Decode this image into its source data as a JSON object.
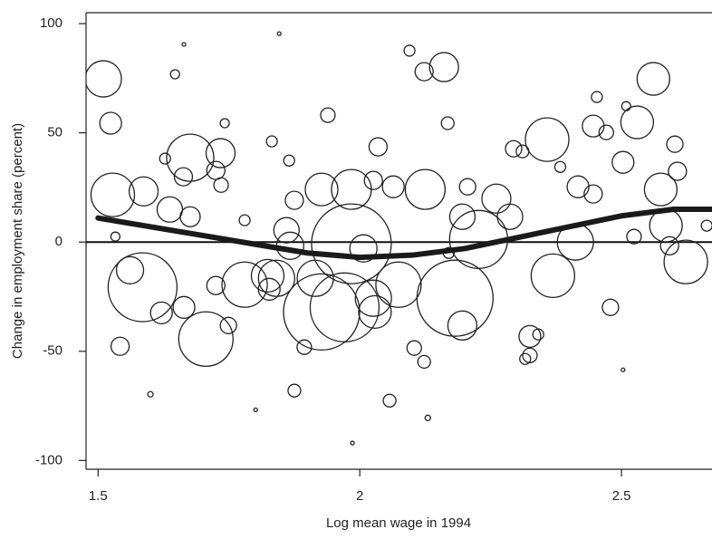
{
  "chart_data": {
    "type": "scatter",
    "x_label": "Log mean wage in 1994",
    "y_label": "Change in employment share (percent)",
    "xlim": [
      1.477,
      2.673
    ],
    "ylim": [
      -104,
      105
    ],
    "xticks": [
      1.5,
      2,
      2.5
    ],
    "yticks": [
      100,
      50,
      0,
      -50,
      -100
    ],
    "hline": 0,
    "color": "#222222",
    "x": [
      1.51,
      1.524,
      1.528,
      1.587,
      1.637,
      1.676,
      1.676,
      1.734,
      1.725,
      1.735,
      1.663,
      1.585,
      1.561,
      1.542,
      1.621,
      1.664,
      1.706,
      1.725,
      1.749,
      1.78,
      1.824,
      1.827,
      1.841,
      1.86,
      1.867,
      1.875,
      1.915,
      1.927,
      1.939,
      1.984,
      1.984,
      1.971,
      1.927,
      2.007,
      2.026,
      2.035,
      2.026,
      2.064,
      2.074,
      2.029,
      2.125,
      2.161,
      2.123,
      2.095,
      2.168,
      2.17,
      2.182,
      2.196,
      2.196,
      2.206,
      2.227,
      2.261,
      2.287,
      2.294,
      2.311,
      2.358,
      2.369,
      2.325,
      2.325,
      2.341,
      2.412,
      2.417,
      2.446,
      2.446,
      2.471,
      2.53,
      2.561,
      2.503,
      2.575,
      2.585,
      2.602,
      2.623,
      2.607,
      2.592,
      2.524,
      2.479,
      2.663,
      2.057,
      2.104,
      2.123,
      1.875,
      1.894,
      1.832,
      1.865,
      1.628,
      1.647,
      1.742,
      1.533,
      1.78,
      2.453,
      2.509,
      2.316,
      2.383,
      1.6,
      2.13,
      1.986,
      1.846,
      1.664,
      2.503,
      1.801
    ],
    "values": [
      74.7,
      54.4,
      21.6,
      23.2,
      14.9,
      11.6,
      38.6,
      40.7,
      32.8,
      26.1,
      29.9,
      -20.7,
      -12.9,
      -47.7,
      -32.4,
      -29.9,
      -44.4,
      -19.9,
      -38.2,
      -19.5,
      -15.4,
      -21.6,
      -16.6,
      5.4,
      -1.7,
      19.1,
      -16.6,
      24.1,
      58.1,
      24.1,
      -0.8,
      -29.9,
      -32,
      -2.9,
      -25.7,
      43.6,
      28.2,
      25.3,
      -19.5,
      -32,
      24.1,
      80.1,
      78,
      87.6,
      54.4,
      -5,
      -25.7,
      -38.2,
      11.6,
      25.3,
      1.2,
      19.9,
      11.6,
      42.7,
      41.5,
      46.9,
      -15.4,
      -43.2,
      -51.9,
      -42.3,
      0,
      25.3,
      22,
      53.1,
      50.2,
      54.8,
      74.7,
      36.5,
      24.1,
      7.5,
      44.8,
      -9.1,
      32.4,
      -1.7,
      2.5,
      -29.9,
      7.5,
      -72.6,
      -48.5,
      -54.8,
      -68,
      -48.1,
      46.1,
      37.3,
      38.2,
      76.8,
      54.4,
      2.5,
      10,
      66.4,
      62.2,
      -53.5,
      34.4,
      -69.7,
      -80.5,
      -92,
      95.4,
      90.5,
      -58.5,
      -76.8
    ],
    "sizes": [
      20,
      12,
      24,
      16,
      14,
      11,
      26,
      16,
      10,
      8,
      10,
      38,
      15,
      10,
      12,
      12,
      30,
      10,
      9,
      25,
      18,
      12,
      20,
      14,
      15,
      10,
      20,
      18,
      8,
      22,
      44,
      38,
      42,
      15,
      20,
      10,
      10,
      12,
      25,
      18,
      22,
      16,
      10,
      6,
      7,
      6,
      42,
      16,
      14,
      9,
      32,
      16,
      14,
      9,
      7,
      24,
      24,
      12,
      8,
      6,
      20,
      12,
      10,
      12,
      8,
      18,
      18,
      12,
      18,
      18,
      9,
      24,
      10,
      10,
      8,
      9,
      6,
      7,
      8,
      7,
      7,
      8,
      6,
      6,
      6,
      5,
      5,
      5,
      6,
      6,
      5,
      6,
      6,
      3,
      3,
      2,
      2,
      2,
      2,
      2
    ],
    "smooth": {
      "color": "#1a1a1a",
      "x": [
        1.5,
        1.6,
        1.7,
        1.8,
        1.9,
        2.0,
        2.1,
        2.2,
        2.3,
        2.4,
        2.5,
        2.6,
        2.673
      ],
      "values": [
        11,
        7,
        3,
        -1,
        -5,
        -7,
        -6,
        -3,
        2,
        7,
        12,
        15,
        15
      ]
    }
  }
}
